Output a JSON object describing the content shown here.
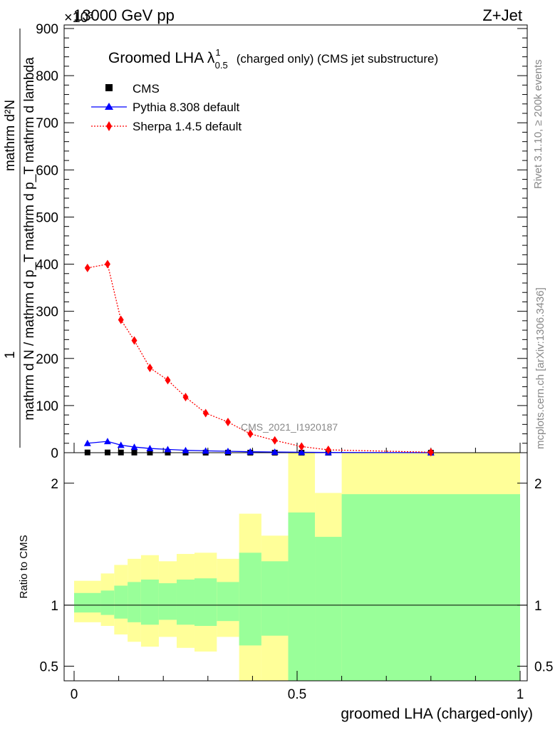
{
  "header": {
    "left": "13000 GeV pp",
    "right": "Z+Jet",
    "exponent": "×10³"
  },
  "side_labels": {
    "rivet": "Rivet 3.1.10, ≥ 200k events",
    "mcplots": "mcplots.cern.ch [arXiv:1306.3436]"
  },
  "chart_data": {
    "type": "line",
    "title": "Groomed LHA λ",
    "title_sup": "1",
    "title_sub": "0.5",
    "title_rest": "(charged only) (CMS jet substructure)",
    "xlabel": "groomed LHA (charged-only)",
    "ylabel_numerator": "mathrm d²N",
    "ylabel_denominator": "mathrm d N / mathrm d p_T mathrm d p_T mathrm d lambda",
    "ylabel_one": "1",
    "ratio_ylabel": "Ratio to CMS",
    "watermark": "CMS_2021_I1920187",
    "xlim": [
      0,
      1
    ],
    "ylim": [
      0,
      900
    ],
    "yticks": [
      0,
      100,
      200,
      300,
      400,
      500,
      600,
      700,
      800,
      900
    ],
    "ytick_labels": [
      "0",
      "100",
      "200",
      "300",
      "400",
      "500",
      "600",
      "700",
      "800",
      "900"
    ],
    "xticks": [
      0,
      0.5,
      1
    ],
    "xtick_labels": [
      "0",
      "0.5",
      "1"
    ],
    "ratio_ylim": [
      0.38,
      2.25
    ],
    "ratio_yticks": [
      0.5,
      1,
      2
    ],
    "ratio_ytick_labels": [
      "0.5",
      "1",
      "2"
    ],
    "legend": [
      {
        "name": "CMS",
        "marker": "square",
        "color": "#000000"
      },
      {
        "name": "Pythia 8.308 default",
        "marker": "triangle",
        "color": "#0000ff"
      },
      {
        "name": "Sherpa 1.4.5 default",
        "marker": "diamond",
        "color": "#ff0000"
      }
    ],
    "series": [
      {
        "name": "CMS",
        "x": [
          0.03,
          0.075,
          0.105,
          0.135,
          0.17,
          0.21,
          0.25,
          0.295,
          0.345,
          0.395,
          0.45,
          0.51,
          0.57,
          0.8
        ],
        "values": [
          0.5,
          0.5,
          0.4,
          0.3,
          0.3,
          0.2,
          0.2,
          0.1,
          0.1,
          0.1,
          0.05,
          0.05,
          0.02,
          0.01
        ]
      },
      {
        "name": "Pythia 8.308 default",
        "x": [
          0.03,
          0.075,
          0.105,
          0.135,
          0.17,
          0.21,
          0.25,
          0.295,
          0.345,
          0.395,
          0.45,
          0.51,
          0.57,
          0.8
        ],
        "values": [
          20,
          24,
          16,
          12,
          9,
          7,
          5,
          4,
          3,
          2,
          1.5,
          1,
          0.5,
          0.1
        ]
      },
      {
        "name": "Sherpa 1.4.5 default",
        "x": [
          0.03,
          0.075,
          0.105,
          0.135,
          0.17,
          0.21,
          0.25,
          0.295,
          0.345,
          0.395,
          0.45,
          0.51,
          0.57,
          0.8
        ],
        "values": [
          392,
          400,
          282,
          238,
          180,
          154,
          118,
          84,
          65,
          40,
          26,
          13,
          6,
          1
        ]
      }
    ],
    "ratio_bands": {
      "edges": [
        0,
        0.06,
        0.09,
        0.12,
        0.15,
        0.19,
        0.23,
        0.27,
        0.32,
        0.37,
        0.42,
        0.48,
        0.54,
        0.6,
        1.0
      ],
      "yellow_low": [
        0.86,
        0.83,
        0.76,
        0.7,
        0.66,
        0.74,
        0.65,
        0.62,
        0.74,
        0.0,
        0.0,
        0.0,
        0.0,
        0.0
      ],
      "yellow_high": [
        1.2,
        1.26,
        1.33,
        1.38,
        1.41,
        1.36,
        1.42,
        1.43,
        1.38,
        1.75,
        1.57,
        3.0,
        1.92,
        3.0
      ],
      "green_low": [
        0.94,
        0.92,
        0.89,
        0.86,
        0.84,
        0.88,
        0.84,
        0.83,
        0.87,
        0.67,
        0.75,
        0.3,
        0.3,
        0.3
      ],
      "green_high": [
        1.1,
        1.12,
        1.16,
        1.19,
        1.21,
        1.18,
        1.21,
        1.22,
        1.19,
        1.43,
        1.36,
        1.76,
        1.56,
        1.91
      ]
    }
  }
}
